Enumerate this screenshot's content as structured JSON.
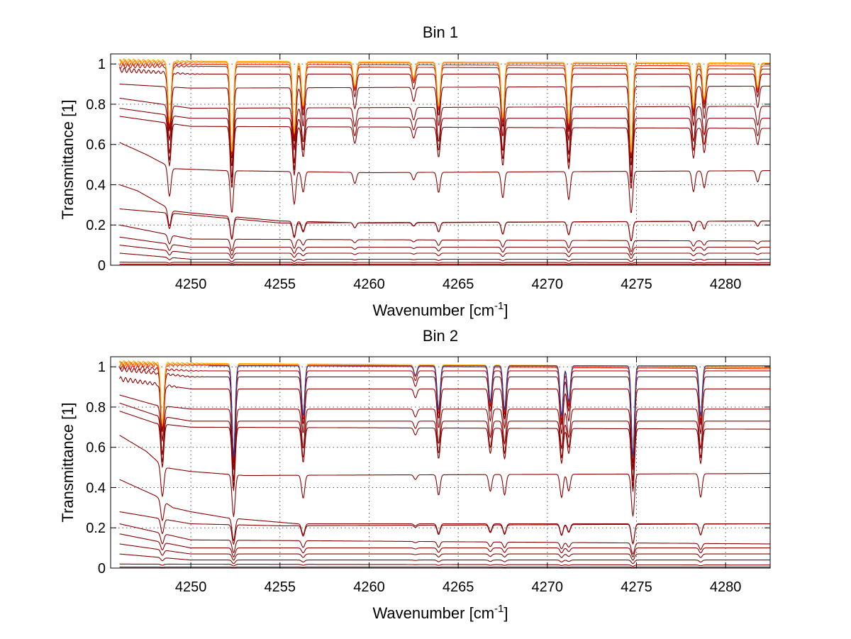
{
  "chart_data": [
    {
      "type": "line",
      "title": "Bin 1",
      "xlabel": "Wavenumber [cm",
      "xlabel_sup": "-1",
      "xlabel_end": "]",
      "ylabel": "Transmittance [1]",
      "xlim": [
        4245.5,
        4282.5
      ],
      "ylim": [
        0,
        1.05
      ],
      "xticks": [
        4250,
        4255,
        4260,
        4265,
        4270,
        4275,
        4280
      ],
      "yticks": [
        0,
        0.2,
        0.4,
        0.6,
        0.8,
        1
      ],
      "ytick_labels": [
        "0",
        "0.2",
        "0.4",
        "0.6",
        "0.8",
        "1"
      ],
      "grid": true,
      "absorption_lines": [
        {
          "x": 4248.8,
          "depth": 0.3
        },
        {
          "x": 4252.3,
          "depth": 0.45
        },
        {
          "x": 4255.8,
          "depth": 0.35
        },
        {
          "x": 4256.3,
          "depth": 0.22
        },
        {
          "x": 4259.2,
          "depth": 0.12
        },
        {
          "x": 4262.5,
          "depth": 0.08
        },
        {
          "x": 4263.9,
          "depth": 0.22
        },
        {
          "x": 4267.5,
          "depth": 0.28
        },
        {
          "x": 4271.2,
          "depth": 0.3
        },
        {
          "x": 4274.7,
          "depth": 0.45
        },
        {
          "x": 4278.2,
          "depth": 0.22
        },
        {
          "x": 4278.8,
          "depth": 0.18
        },
        {
          "x": 4281.8,
          "depth": 0.12
        }
      ],
      "series": [
        {
          "color": "#8b0000",
          "values": [
            [
              4246,
              0.005
            ],
            [
              4282.5,
              0.005
            ]
          ]
        },
        {
          "color": "#8b0000",
          "values": [
            [
              4246,
              0.015
            ],
            [
              4282.5,
              0.013
            ]
          ]
        },
        {
          "color": "#8b0000",
          "values": [
            [
              4246,
              0.06
            ],
            [
              4250,
              0.03
            ],
            [
              4282.5,
              0.03
            ]
          ]
        },
        {
          "color": "#8b0000",
          "values": [
            [
              4246,
              0.1
            ],
            [
              4250,
              0.06
            ],
            [
              4282.5,
              0.06
            ]
          ]
        },
        {
          "color": "#8b0000",
          "values": [
            [
              4246,
              0.14
            ],
            [
              4250,
              0.09
            ],
            [
              4282.5,
              0.09
            ]
          ]
        },
        {
          "color": "#8b0000",
          "values": [
            [
              4246,
              0.2
            ],
            [
              4250,
              0.13
            ],
            [
              4282.5,
              0.12
            ]
          ]
        },
        {
          "color": "#8b0000",
          "values": [
            [
              4246,
              0.28
            ],
            [
              4250,
              0.25
            ],
            [
              4255,
              0.21
            ],
            [
              4282.5,
              0.22
            ]
          ]
        },
        {
          "color": "#8b0000",
          "values": [
            [
              4246,
              0.4
            ],
            [
              4247,
              0.37
            ],
            [
              4248,
              0.32
            ],
            [
              4249,
              0.27
            ],
            [
              4250,
              0.26
            ],
            [
              4255,
              0.22
            ],
            [
              4260,
              0.21
            ],
            [
              4282.5,
              0.22
            ]
          ]
        },
        {
          "color": "#8b0000",
          "values": [
            [
              4246,
              0.61
            ],
            [
              4247.5,
              0.55
            ],
            [
              4249,
              0.48
            ],
            [
              4252,
              0.47
            ],
            [
              4260,
              0.46
            ],
            [
              4282.5,
              0.47
            ]
          ]
        },
        {
          "color": "#8b0000",
          "values": [
            [
              4246,
              0.74
            ],
            [
              4250,
              0.69
            ],
            [
              4282.5,
              0.68
            ]
          ]
        },
        {
          "color": "#8b0000",
          "values": [
            [
              4246,
              0.78
            ],
            [
              4250,
              0.73
            ],
            [
              4282.5,
              0.73
            ]
          ]
        },
        {
          "color": "#8b0000",
          "values": [
            [
              4246,
              0.83
            ],
            [
              4250,
              0.78
            ],
            [
              4282.5,
              0.79
            ]
          ]
        },
        {
          "color": "#8b0000",
          "values": [
            [
              4246,
              0.9
            ],
            [
              4250,
              0.88
            ],
            [
              4282.5,
              0.89
            ]
          ]
        },
        {
          "color": "#8b0000",
          "values": [
            [
              4246,
              0.97
            ],
            [
              4250,
              0.95
            ],
            [
              4282.5,
              0.95
            ]
          ]
        },
        {
          "color": "#b01a00",
          "values": [
            [
              4246,
              0.99
            ],
            [
              4282.5,
              0.975
            ]
          ]
        },
        {
          "color": "#ff2000",
          "values": [
            [
              4246,
              1.0
            ],
            [
              4282.5,
              0.99
            ]
          ]
        },
        {
          "color": "#ff6a00",
          "values": [
            [
              4246,
              1.01
            ],
            [
              4282.5,
              1.0
            ]
          ]
        },
        {
          "color": "#ffb000",
          "values": [
            [
              4246,
              1.015
            ],
            [
              4282.5,
              1.005
            ]
          ]
        }
      ]
    },
    {
      "type": "line",
      "title": "Bin 2",
      "xlabel": "Wavenumber [cm",
      "xlabel_sup": "-1",
      "xlabel_end": "]",
      "ylabel": "Transmittance [1]",
      "xlim": [
        4245.5,
        4282.5
      ],
      "ylim": [
        0,
        1.05
      ],
      "xticks": [
        4250,
        4255,
        4260,
        4265,
        4270,
        4275,
        4280
      ],
      "yticks": [
        0,
        0.2,
        0.4,
        0.6,
        0.8,
        1
      ],
      "ytick_labels": [
        "0",
        "0.2",
        "0.4",
        "0.6",
        "0.8",
        "1"
      ],
      "grid": true,
      "absorption_lines": [
        {
          "x": 4248.4,
          "depth": 0.3
        },
        {
          "x": 4252.4,
          "depth": 0.45
        },
        {
          "x": 4256.3,
          "depth": 0.25
        },
        {
          "x": 4262.6,
          "depth": 0.05
        },
        {
          "x": 4263.9,
          "depth": 0.22
        },
        {
          "x": 4266.8,
          "depth": 0.18
        },
        {
          "x": 4267.6,
          "depth": 0.22
        },
        {
          "x": 4270.8,
          "depth": 0.25
        },
        {
          "x": 4271.2,
          "depth": 0.18
        },
        {
          "x": 4274.8,
          "depth": 0.45
        },
        {
          "x": 4278.6,
          "depth": 0.25
        }
      ],
      "series": [
        {
          "color": "#8b0000",
          "values": [
            [
              4246,
              0.005
            ],
            [
              4282.5,
              0.005
            ]
          ]
        },
        {
          "color": "#8b0000",
          "values": [
            [
              4246,
              0.02
            ],
            [
              4282.5,
              0.015
            ]
          ]
        },
        {
          "color": "#8b0000",
          "values": [
            [
              4246,
              0.07
            ],
            [
              4250,
              0.04
            ],
            [
              4282.5,
              0.04
            ]
          ]
        },
        {
          "color": "#8b0000",
          "values": [
            [
              4246,
              0.12
            ],
            [
              4250,
              0.07
            ],
            [
              4282.5,
              0.07
            ]
          ]
        },
        {
          "color": "#8b0000",
          "values": [
            [
              4246,
              0.17
            ],
            [
              4250,
              0.1
            ],
            [
              4282.5,
              0.1
            ]
          ]
        },
        {
          "color": "#8b0000",
          "values": [
            [
              4246,
              0.22
            ],
            [
              4250,
              0.14
            ],
            [
              4282.5,
              0.12
            ]
          ]
        },
        {
          "color": "#8b0000",
          "values": [
            [
              4246,
              0.28
            ],
            [
              4248,
              0.25
            ],
            [
              4250,
              0.22
            ],
            [
              4255,
              0.21
            ],
            [
              4282.5,
              0.22
            ]
          ]
        },
        {
          "color": "#8b0000",
          "values": [
            [
              4246,
              0.44
            ],
            [
              4247,
              0.4
            ],
            [
              4248,
              0.36
            ],
            [
              4249,
              0.3
            ],
            [
              4250,
              0.28
            ],
            [
              4252,
              0.25
            ],
            [
              4256,
              0.22
            ],
            [
              4282.5,
              0.22
            ]
          ]
        },
        {
          "color": "#8b0000",
          "values": [
            [
              4246,
              0.66
            ],
            [
              4247.5,
              0.58
            ],
            [
              4248.5,
              0.5
            ],
            [
              4250,
              0.48
            ],
            [
              4253,
              0.46
            ],
            [
              4282.5,
              0.47
            ]
          ]
        },
        {
          "color": "#8b0000",
          "values": [
            [
              4246,
              0.78
            ],
            [
              4248,
              0.72
            ],
            [
              4250,
              0.7
            ],
            [
              4282.5,
              0.69
            ]
          ]
        },
        {
          "color": "#8b0000",
          "values": [
            [
              4246,
              0.82
            ],
            [
              4248,
              0.76
            ],
            [
              4250,
              0.73
            ],
            [
              4282.5,
              0.73
            ]
          ]
        },
        {
          "color": "#8b0000",
          "values": [
            [
              4246,
              0.86
            ],
            [
              4248,
              0.81
            ],
            [
              4250,
              0.79
            ],
            [
              4282.5,
              0.79
            ]
          ]
        },
        {
          "color": "#8b0000",
          "values": [
            [
              4246,
              0.94
            ],
            [
              4250,
              0.89
            ],
            [
              4282.5,
              0.89
            ]
          ]
        },
        {
          "color": "#8b0000",
          "values": [
            [
              4246,
              0.99
            ],
            [
              4250,
              0.95
            ],
            [
              4282.5,
              0.95
            ]
          ]
        },
        {
          "color": "#c00000",
          "values": [
            [
              4246,
              1.0
            ],
            [
              4250,
              0.98
            ],
            [
              4282.5,
              0.98
            ]
          ]
        },
        {
          "color": "#ff2000",
          "values": [
            [
              4246,
              1.01
            ],
            [
              4282.5,
              0.99
            ]
          ]
        },
        {
          "color": "#ff6a00",
          "values": [
            [
              4246,
              1.015
            ],
            [
              4282.5,
              0.995
            ]
          ]
        },
        {
          "color": "#ffb000",
          "values": [
            [
              4246,
              1.02
            ],
            [
              4282.5,
              1.0
            ]
          ]
        },
        {
          "color": "#1030c0",
          "values": [
            [
              4251,
              1.005
            ],
            [
              4282.5,
              1.005
            ]
          ]
        }
      ]
    }
  ]
}
